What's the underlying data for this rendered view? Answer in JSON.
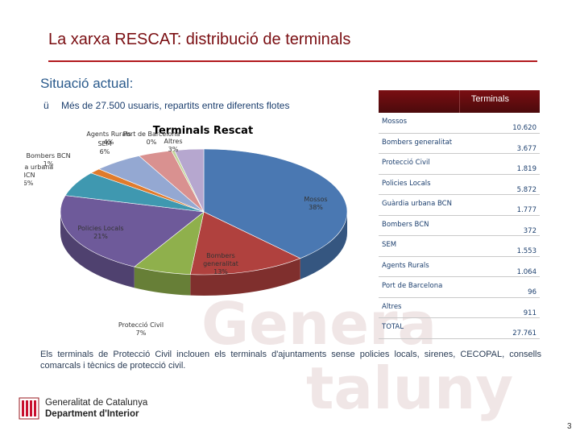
{
  "slide": {
    "title": "La xarxa RESCAT: distribució de terminals",
    "subtitle": "Situació actual:",
    "bullet_check": "ü",
    "bullet_text": "Més de 27.500 usuaris, repartits entre diferents flotes",
    "note": "Els terminals de Protecció Civil inclouen els terminals d'ajuntaments sense policies locals, sirenes, CECOPAL, consells comarcals i tècnics de protecció civil.",
    "footer": {
      "org_line1": "Generalitat de Catalunya",
      "org_line2": "Department d'Interior",
      "page_number": "3"
    }
  },
  "table": {
    "header": "Terminals",
    "rows": [
      {
        "name": "Mossos",
        "value": "10.620"
      },
      {
        "name": "Bombers generalitat",
        "value": "3.677"
      },
      {
        "name": "Protecció Civil",
        "value": "1.819"
      },
      {
        "name": "Policies Locals",
        "value": "5.872"
      },
      {
        "name": "Guàrdia urbana BCN",
        "value": "1.777"
      },
      {
        "name": "Bombers BCN",
        "value": "372"
      },
      {
        "name": "SEM",
        "value": "1.553"
      },
      {
        "name": "Agents Rurals",
        "value": "1.064"
      },
      {
        "name": "Port de Barcelona",
        "value": "96"
      },
      {
        "name": "Altres",
        "value": "911"
      },
      {
        "name": "TOTAL",
        "value": "27.761"
      }
    ]
  },
  "chart_data": {
    "type": "pie",
    "title": "Terminals Rescat",
    "slices": [
      {
        "name": "Mossos",
        "value": 10620,
        "label": "Mossos\n38%",
        "color": "#4a78b2"
      },
      {
        "name": "Bombers generalitat",
        "value": 3677,
        "label": "Bombers\ngeneralitat\n13%",
        "color": "#b0413e"
      },
      {
        "name": "Protecció Civil",
        "value": 1819,
        "label": "Protecció Civil\n7%",
        "color": "#8fb04c"
      },
      {
        "name": "Policies Locals",
        "value": 5872,
        "label": "Policies Locals\n21%",
        "color": "#6e5a9a"
      },
      {
        "name": "Guàrdia urbana BCN",
        "value": 1777,
        "label": "Guàrdia urbana\nBCN\n6%",
        "color": "#3f98b0"
      },
      {
        "name": "Bombers BCN",
        "value": 372,
        "label": "Bombers BCN\n1%",
        "color": "#e07b2c"
      },
      {
        "name": "SEM",
        "value": 1553,
        "label": "SEM\n6%",
        "color": "#94a8d2"
      },
      {
        "name": "Agents Rurals",
        "value": 1064,
        "label": "Agents Rurals\n4%",
        "color": "#d99190"
      },
      {
        "name": "Port de Barcelona",
        "value": 96,
        "label": "Port de Barcelona\n0%",
        "color": "#c3d69b"
      },
      {
        "name": "Altres",
        "value": 911,
        "label": "Altres\n3%",
        "color": "#b6a7cf"
      }
    ]
  }
}
